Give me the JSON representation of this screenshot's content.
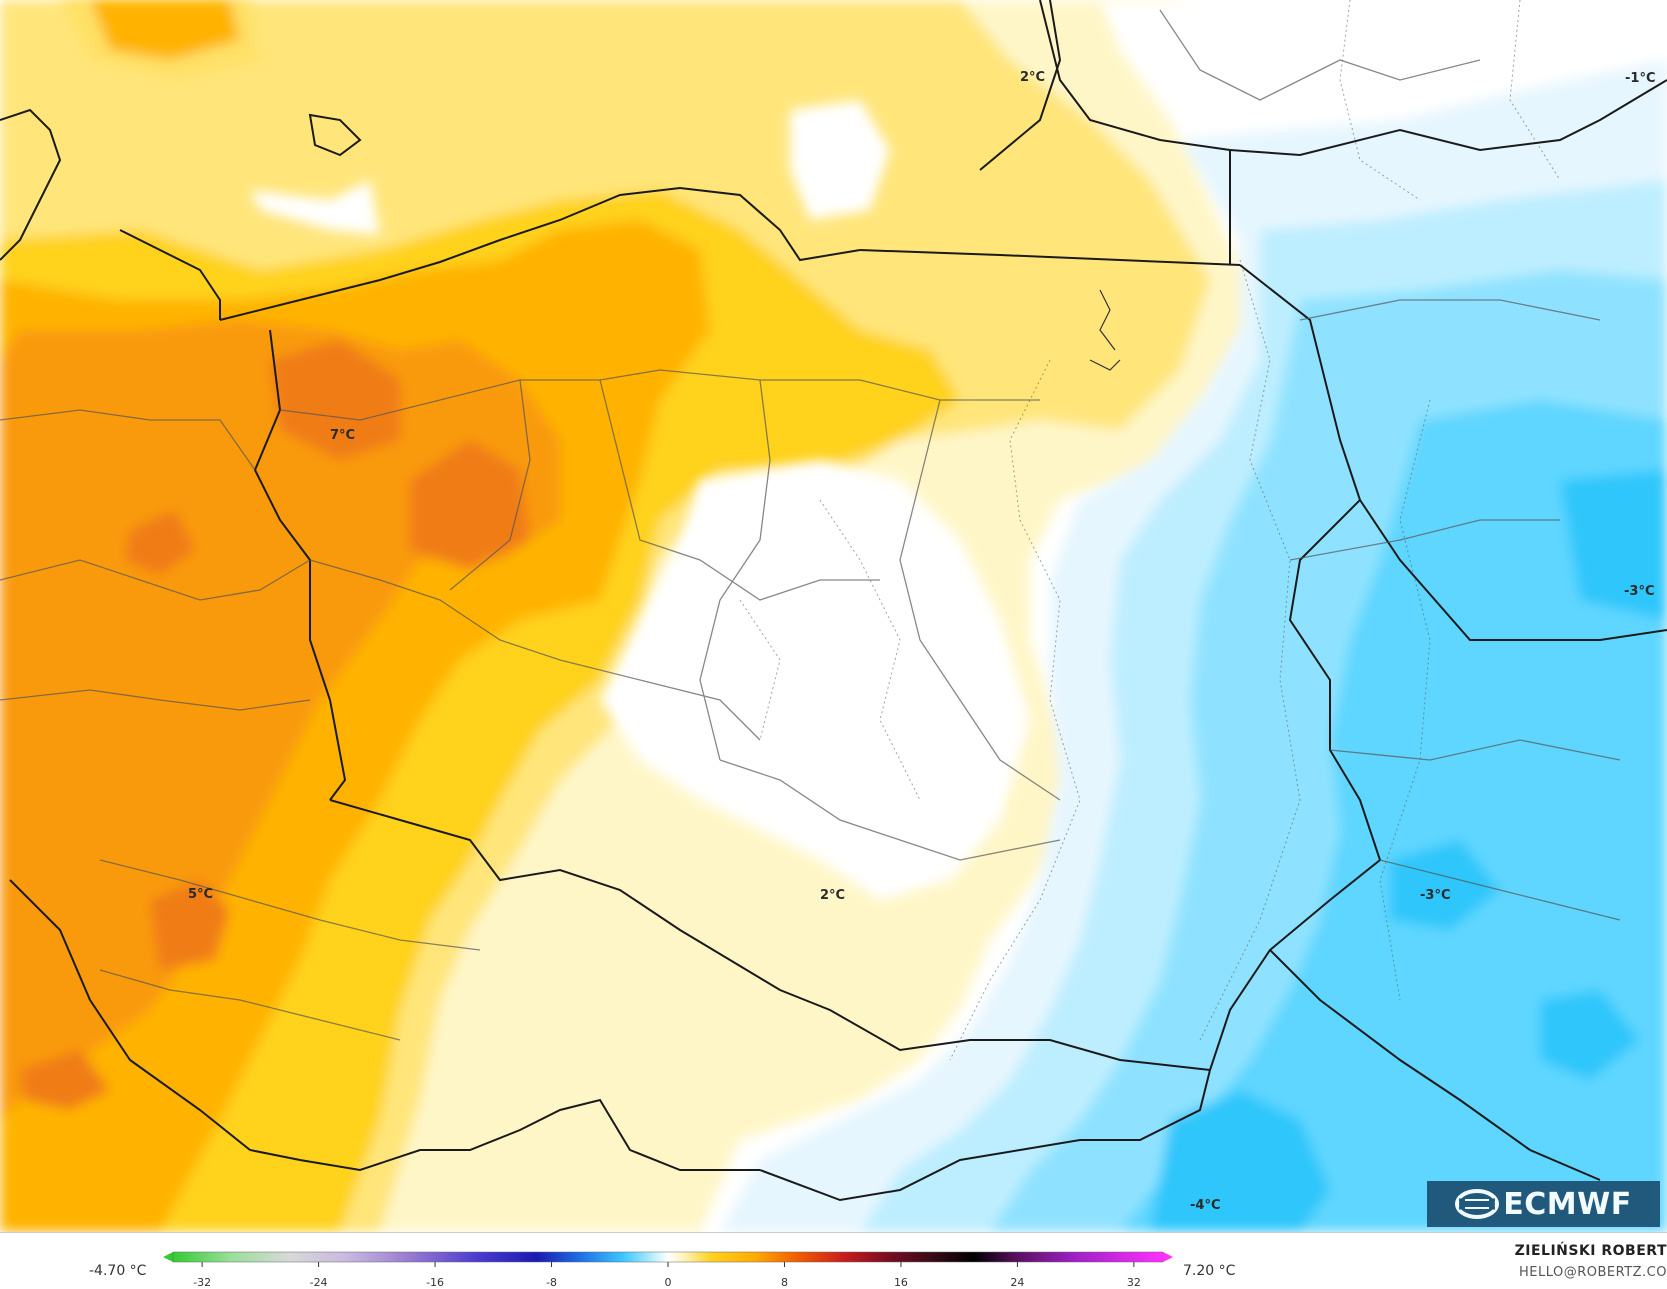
{
  "map": {
    "temperature_labels": [
      {
        "id": "north-sea",
        "text": "2°C"
      },
      {
        "id": "northeast",
        "text": "-1°C"
      },
      {
        "id": "poland-west",
        "text": "7°C"
      },
      {
        "id": "east-center",
        "text": "-3°C"
      },
      {
        "id": "czech",
        "text": "5°C"
      },
      {
        "id": "south-center",
        "text": "2°C"
      },
      {
        "id": "ukraine",
        "text": "-3°C"
      },
      {
        "id": "carpathians",
        "text": "-4°C"
      }
    ]
  },
  "logo": {
    "text": "ECMWF"
  },
  "legend": {
    "min_label": "-4.70 °C",
    "max_label": "7.20 °C",
    "ticks": [
      "-32",
      "-24",
      "-16",
      "-8",
      "0",
      "8",
      "16",
      "24",
      "32"
    ],
    "tick_values": [
      -32,
      -24,
      -16,
      -8,
      0,
      8,
      16,
      24,
      32
    ],
    "range": [
      -34,
      34
    ],
    "stops": [
      {
        "v": -34,
        "c": "#33cc33"
      },
      {
        "v": -30,
        "c": "#9adf9a"
      },
      {
        "v": -26,
        "c": "#d8d8d8"
      },
      {
        "v": -22,
        "c": "#c8b8e0"
      },
      {
        "v": -18,
        "c": "#9a7fd0"
      },
      {
        "v": -13,
        "c": "#4b3ad0"
      },
      {
        "v": -9,
        "c": "#1a1ab0"
      },
      {
        "v": -6,
        "c": "#1e6fe6"
      },
      {
        "v": -3,
        "c": "#3fc8ff"
      },
      {
        "v": -1,
        "c": "#bdefff"
      },
      {
        "v": 0,
        "c": "#ffffff"
      },
      {
        "v": 1,
        "c": "#fff4c2"
      },
      {
        "v": 3,
        "c": "#ffd21e"
      },
      {
        "v": 6,
        "c": "#ffaa00"
      },
      {
        "v": 9,
        "c": "#f05a00"
      },
      {
        "v": 12,
        "c": "#c81e1e"
      },
      {
        "v": 15,
        "c": "#7a0d20"
      },
      {
        "v": 18,
        "c": "#3a0a18"
      },
      {
        "v": 21,
        "c": "#000000"
      },
      {
        "v": 24,
        "c": "#5a1060"
      },
      {
        "v": 28,
        "c": "#a020c8"
      },
      {
        "v": 34,
        "c": "#ff30ff"
      }
    ]
  },
  "footer": {
    "author": "ZIELIŃSKI ROBERT",
    "email": "HELLO@ROBERTZ.CO"
  },
  "colors": {
    "warm_1": "#fff6c8",
    "warm_2": "#ffe168",
    "warm_3": "#ffd21e",
    "warm_4": "#ffb300",
    "warm_5": "#f99a0c",
    "warm_6": "#f07b14",
    "neutral": "#ffffff",
    "cool_1": "#e6f6fe",
    "cool_2": "#bdeeff",
    "cool_3": "#8fe2ff",
    "cool_4": "#5fd6ff",
    "cool_5": "#2ec6fb"
  }
}
